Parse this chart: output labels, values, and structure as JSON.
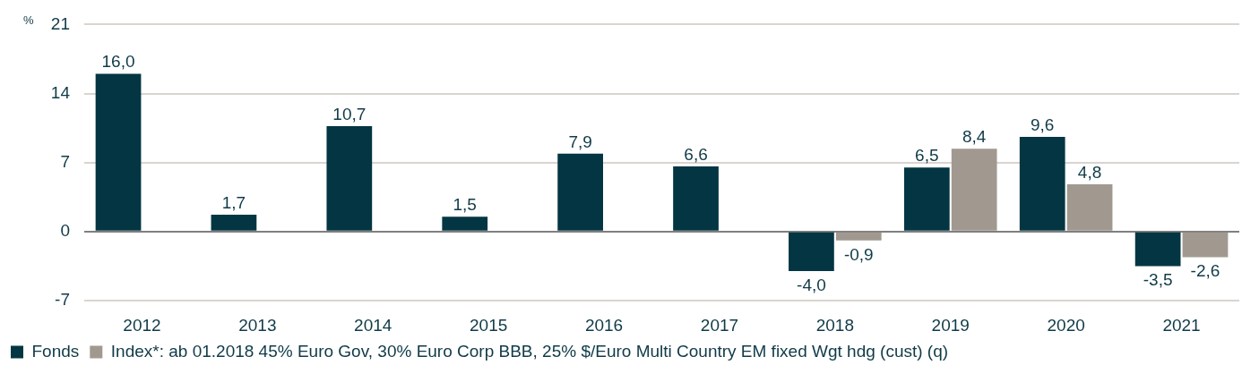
{
  "chart_data": {
    "type": "bar",
    "ylabel": "%",
    "categories": [
      "2012",
      "2013",
      "2014",
      "2015",
      "2016",
      "2017",
      "2018",
      "2019",
      "2020",
      "2021"
    ],
    "series": [
      {
        "name": "Fonds",
        "color": "#033642",
        "values": [
          16.0,
          1.7,
          10.7,
          1.5,
          7.9,
          6.6,
          -4.0,
          6.5,
          9.6,
          -3.5
        ],
        "value_labels": [
          "16,0",
          "1,7",
          "10,7",
          "1,5",
          "7,9",
          "6,6",
          "-4,0",
          "6,5",
          "9,6",
          "-3,5"
        ]
      },
      {
        "name": "Index*: ab 01.2018 45% Euro Gov, 30% Euro Corp BBB, 25% $/Euro Multi Country EM fixed Wgt hdg (cust) (q)",
        "color": "#a19990",
        "values": [
          null,
          null,
          null,
          null,
          null,
          null,
          -0.9,
          8.4,
          4.8,
          -2.6
        ],
        "value_labels": [
          null,
          null,
          null,
          null,
          null,
          null,
          "-0,9",
          "8,4",
          "4,8",
          "-2,6"
        ]
      }
    ],
    "ylim": [
      -7,
      21
    ],
    "yticks": [
      -7,
      0,
      7,
      14,
      21
    ],
    "grid": "y",
    "legend": "bottom left"
  }
}
